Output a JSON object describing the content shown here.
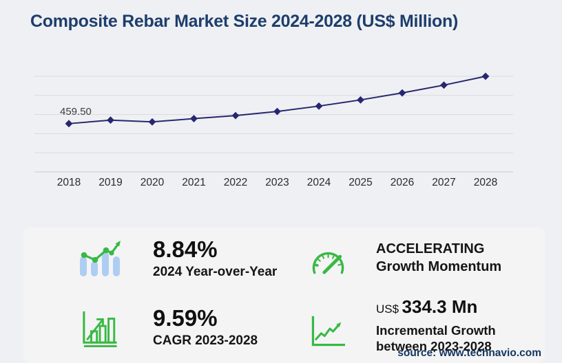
{
  "title": "Composite Rebar Market Size 2024-2028 (US$ Million)",
  "chart_data": {
    "type": "line",
    "title": "Composite Rebar Market Size 2024-2028 (US$ Million)",
    "x": [
      "2018",
      "2019",
      "2020",
      "2021",
      "2022",
      "2023",
      "2024",
      "2025",
      "2026",
      "2027",
      "2028"
    ],
    "series": [
      {
        "name": "Composite rebar market size (US$ Million)",
        "values": [
          459.5,
          493,
          476,
          507,
          536,
          575.5,
          626.4,
          685.3,
          751.8,
          826.2,
          909.8
        ]
      }
    ],
    "point_label": {
      "index": 0,
      "text": "459.50"
    },
    "ylim": [
      0,
      910
    ],
    "gridlines": 6,
    "grid": "horizontal",
    "legend": "none",
    "marker": "diamond",
    "xlabel": "",
    "ylabel": ""
  },
  "stats": {
    "yoy": {
      "icon": "bar-chart-up-trend-icon",
      "value": "8.84%",
      "caption": "2024 Year-over-Year"
    },
    "momentum": {
      "icon": "speedometer-icon",
      "line1": "ACCELERATING",
      "line2": "Growth Momentum"
    },
    "cagr": {
      "icon": "bar-chart-growth-arrow-icon",
      "value": "9.59%",
      "caption": "CAGR 2023-2028"
    },
    "incremental": {
      "icon": "line-graph-up-arrow-icon",
      "currency": "US$",
      "value": "334.3 Mn",
      "caption_line1": "Incremental Growth",
      "caption_line2": "between 2023-2028"
    }
  },
  "source": "source: www.technavio.com",
  "colors": {
    "title": "#1d3e6d",
    "line": "#26276f",
    "green": "#38b944",
    "light_blue": "#aecdf2",
    "page_bg": "#eff0f3",
    "panel_bg": "#f4f4f5",
    "gridline": "#d9dadd",
    "axis_line": "#c9cacd",
    "source_text": "#13355f",
    "stat_text": "#101010"
  }
}
